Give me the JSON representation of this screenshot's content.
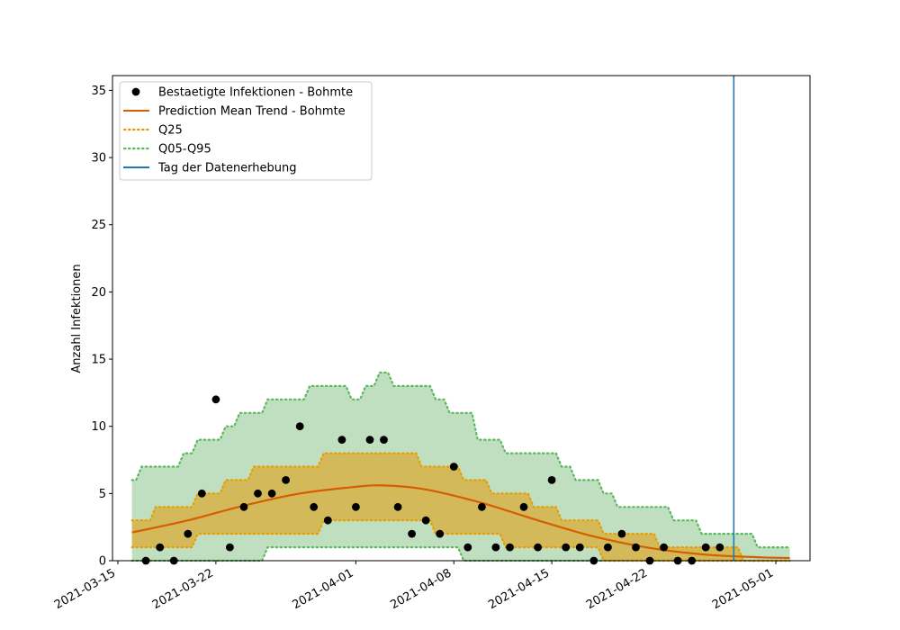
{
  "chart_data": {
    "type": "scatter",
    "title": "",
    "xlabel": "",
    "ylabel": "Anzahl Infektionen",
    "xlim": [
      "2021-03-14",
      "2021-05-02"
    ],
    "ylim": [
      0,
      36
    ],
    "xticks": [
      "2021-03-15",
      "2021-03-22",
      "2021-04-01",
      "2021-04-08",
      "2021-04-15",
      "2021-04-22",
      "2021-05-01"
    ],
    "yticks": [
      0,
      5,
      10,
      15,
      20,
      25,
      30,
      35
    ],
    "grid": false,
    "legend_position": "top-left",
    "colors": {
      "observed": "#000000",
      "mean": "#d55e00",
      "q25": "#e69f00",
      "q05_q95": "#5cb85c",
      "outer_fill": "#c0dfc0",
      "inner_fill": "#d4b95a",
      "vline": "#1f77b4"
    },
    "legend": [
      {
        "label": "Bestaetigte Infektionen - Bohmte",
        "kind": "dot",
        "color": "#000000"
      },
      {
        "label": "Prediction Mean Trend - Bohmte",
        "kind": "line",
        "color": "#d55e00"
      },
      {
        "label": "Q25",
        "kind": "dotted",
        "color": "#e69f00"
      },
      {
        "label": "Q05-Q95",
        "kind": "dotted",
        "color": "#5cb85c"
      },
      {
        "label": "Tag der Datenerhebung",
        "kind": "line",
        "color": "#1f77b4"
      }
    ],
    "series": [
      {
        "name": "Bestaetigte Infektionen - Bohmte",
        "kind": "scatter",
        "x": [
          "2021-03-17",
          "2021-03-18",
          "2021-03-19",
          "2021-03-20",
          "2021-03-21",
          "2021-03-22",
          "2021-03-23",
          "2021-03-24",
          "2021-03-25",
          "2021-03-26",
          "2021-03-27",
          "2021-03-28",
          "2021-03-29",
          "2021-03-30",
          "2021-03-31",
          "2021-04-01",
          "2021-04-02",
          "2021-04-03",
          "2021-04-04",
          "2021-04-05",
          "2021-04-06",
          "2021-04-07",
          "2021-04-08",
          "2021-04-09",
          "2021-04-10",
          "2021-04-11",
          "2021-04-12",
          "2021-04-13",
          "2021-04-14",
          "2021-04-15",
          "2021-04-16",
          "2021-04-17",
          "2021-04-18",
          "2021-04-19",
          "2021-04-20",
          "2021-04-21",
          "2021-04-22",
          "2021-04-23",
          "2021-04-24",
          "2021-04-25",
          "2021-04-26",
          "2021-04-27"
        ],
        "y": [
          0,
          1,
          0,
          2,
          5,
          12,
          1,
          4,
          5,
          5,
          6,
          10,
          4,
          3,
          9,
          4,
          9,
          9,
          4,
          2,
          3,
          2,
          7,
          1,
          4,
          1,
          1,
          4,
          1,
          6,
          1,
          1,
          0,
          1,
          2,
          1,
          0,
          1,
          0,
          0,
          1,
          1
        ]
      },
      {
        "name": "Prediction Mean Trend - Bohmte",
        "kind": "line",
        "x": [
          "2021-03-16",
          "2021-03-20",
          "2021-03-24",
          "2021-03-28",
          "2021-04-01",
          "2021-04-03",
          "2021-04-06",
          "2021-04-10",
          "2021-04-14",
          "2021-04-18",
          "2021-04-22",
          "2021-04-26",
          "2021-04-30",
          "2021-05-02"
        ],
        "y": [
          2.1,
          3.0,
          4.1,
          5.0,
          5.5,
          5.6,
          5.3,
          4.3,
          3.0,
          1.8,
          0.95,
          0.45,
          0.25,
          0.2
        ]
      }
    ],
    "bands": {
      "dates": [
        "2021-03-16",
        "2021-03-17",
        "2021-03-18",
        "2021-03-19",
        "2021-03-20",
        "2021-03-21",
        "2021-03-22",
        "2021-03-23",
        "2021-03-24",
        "2021-03-25",
        "2021-03-26",
        "2021-03-27",
        "2021-03-28",
        "2021-03-29",
        "2021-03-30",
        "2021-03-31",
        "2021-04-01",
        "2021-04-02",
        "2021-04-03",
        "2021-04-04",
        "2021-04-05",
        "2021-04-06",
        "2021-04-07",
        "2021-04-08",
        "2021-04-09",
        "2021-04-10",
        "2021-04-11",
        "2021-04-12",
        "2021-04-13",
        "2021-04-14",
        "2021-04-15",
        "2021-04-16",
        "2021-04-17",
        "2021-04-18",
        "2021-04-19",
        "2021-04-20",
        "2021-04-21",
        "2021-04-22",
        "2021-04-23",
        "2021-04-24",
        "2021-04-25",
        "2021-04-26",
        "2021-04-27",
        "2021-04-28",
        "2021-04-29",
        "2021-04-30",
        "2021-05-01",
        "2021-05-02"
      ],
      "q05": [
        0,
        0,
        0,
        0,
        0,
        0,
        0,
        0,
        0,
        0,
        1,
        1,
        1,
        1,
        1,
        1,
        1,
        1,
        1,
        1,
        1,
        1,
        1,
        1,
        0,
        0,
        0,
        0,
        0,
        0,
        0,
        0,
        0,
        0,
        0,
        0,
        0,
        0,
        0,
        0,
        0,
        0,
        0,
        0,
        0,
        0,
        0,
        0
      ],
      "q25": [
        1,
        1,
        1,
        1,
        1,
        2,
        2,
        2,
        2,
        2,
        2,
        2,
        2,
        2,
        3,
        3,
        3,
        3,
        3,
        3,
        3,
        3,
        2,
        2,
        2,
        2,
        2,
        1,
        1,
        1,
        1,
        1,
        1,
        1,
        0,
        0,
        0,
        0,
        0,
        0,
        0,
        0,
        0,
        0,
        0,
        0,
        0,
        0
      ],
      "q75": [
        3,
        3,
        4,
        4,
        4,
        5,
        5,
        6,
        6,
        7,
        7,
        7,
        7,
        7,
        8,
        8,
        8,
        8,
        8,
        8,
        8,
        7,
        7,
        7,
        6,
        6,
        5,
        5,
        5,
        4,
        4,
        3,
        3,
        3,
        2,
        2,
        2,
        2,
        1,
        1,
        1,
        1,
        1,
        1,
        0,
        0,
        0,
        0
      ],
      "q95": [
        6,
        7,
        7,
        7,
        8,
        9,
        9,
        10,
        11,
        11,
        12,
        12,
        12,
        13,
        13,
        13,
        12,
        13,
        14,
        13,
        13,
        13,
        12,
        11,
        11,
        9,
        9,
        8,
        8,
        8,
        8,
        7,
        6,
        6,
        5,
        4,
        4,
        4,
        4,
        3,
        3,
        2,
        2,
        2,
        2,
        1,
        1,
        1
      ]
    },
    "vline": {
      "name": "Tag der Datenerhebung",
      "x": "2021-04-28"
    }
  }
}
